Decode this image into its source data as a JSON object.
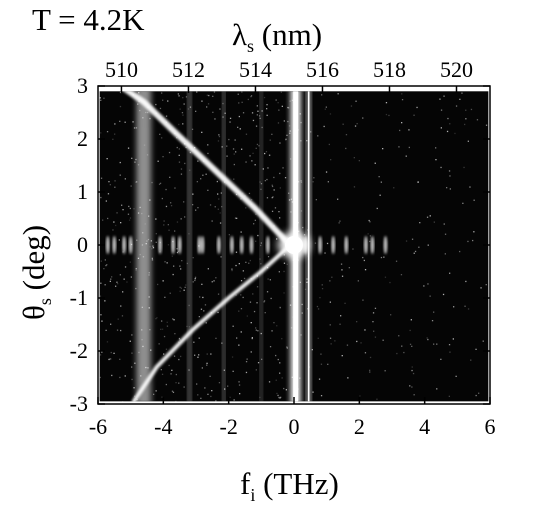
{
  "chart_data": {
    "type": "heatmap",
    "annotation": "T = 4.2K",
    "xlabel": {
      "main": "f",
      "sub": "i",
      "rest": " (THz)"
    },
    "ylabel": {
      "main": "θ",
      "sub": "s",
      "rest": " (deg)"
    },
    "x2label": {
      "main": "λ",
      "sub": "s",
      "rest": " (nm)"
    },
    "xlim": [
      -6,
      6
    ],
    "ylim": [
      -3,
      3
    ],
    "x2lim": [
      509.3,
      521.0
    ],
    "x_ticks": [
      -6,
      -4,
      -2,
      0,
      2,
      4,
      6
    ],
    "y_ticks": [
      -3,
      -2,
      -1,
      0,
      1,
      2,
      3
    ],
    "x2_ticks": [
      510,
      512,
      514,
      516,
      518,
      520
    ],
    "tick_labels": {
      "x": [
        "-6",
        "-4",
        "-2",
        "0",
        "2",
        "4",
        "6"
      ],
      "y": [
        "-3",
        "-2",
        "-1",
        "0",
        "1",
        "2",
        "3"
      ],
      "x2": [
        "510",
        "512",
        "514",
        "516",
        "518",
        "520"
      ]
    },
    "data_extent": {
      "x": [
        -5.95,
        5.95
      ],
      "y": [
        -2.95,
        2.9
      ]
    },
    "colors": {
      "background": "#050505",
      "signal": "#ffffff"
    },
    "features": {
      "vertical_lines": [
        {
          "f": -4.6,
          "width_thz": 0.45,
          "intensity": 0.55
        },
        {
          "f": -3.2,
          "width_thz": 0.08,
          "intensity": 0.55
        },
        {
          "f": -2.15,
          "width_thz": 0.06,
          "intensity": 0.6
        },
        {
          "f": -1.0,
          "width_thz": 0.05,
          "intensity": 0.45
        },
        {
          "f": 0.05,
          "width_thz": 0.3,
          "intensity": 1.0
        },
        {
          "f": 0.45,
          "width_thz": 0.1,
          "intensity": 0.85
        }
      ],
      "upper_branch": [
        [
          -5.3,
          3.0
        ],
        [
          -4.6,
          2.7
        ],
        [
          -3.6,
          2.1
        ],
        [
          -2.4,
          1.4
        ],
        [
          -1.2,
          0.7
        ],
        [
          -0.2,
          0.05
        ]
      ],
      "lower_branch": [
        [
          -4.9,
          -2.95
        ],
        [
          -4.2,
          -2.3
        ],
        [
          -3.1,
          -1.6
        ],
        [
          -2.0,
          -1.0
        ],
        [
          -1.0,
          -0.5
        ],
        [
          -0.2,
          -0.05
        ]
      ],
      "zero_angle_spots": [
        -5.7,
        -5.5,
        -5.2,
        -5.0,
        -4.1,
        -3.7,
        -3.5,
        -2.9,
        -2.8,
        -2.3,
        -1.9,
        -1.6,
        -1.3,
        -0.8,
        0.35,
        0.8,
        1.2,
        1.6,
        2.2,
        2.4,
        2.8
      ],
      "central_spot": {
        "f": 0.0,
        "theta": 0.0
      }
    }
  }
}
